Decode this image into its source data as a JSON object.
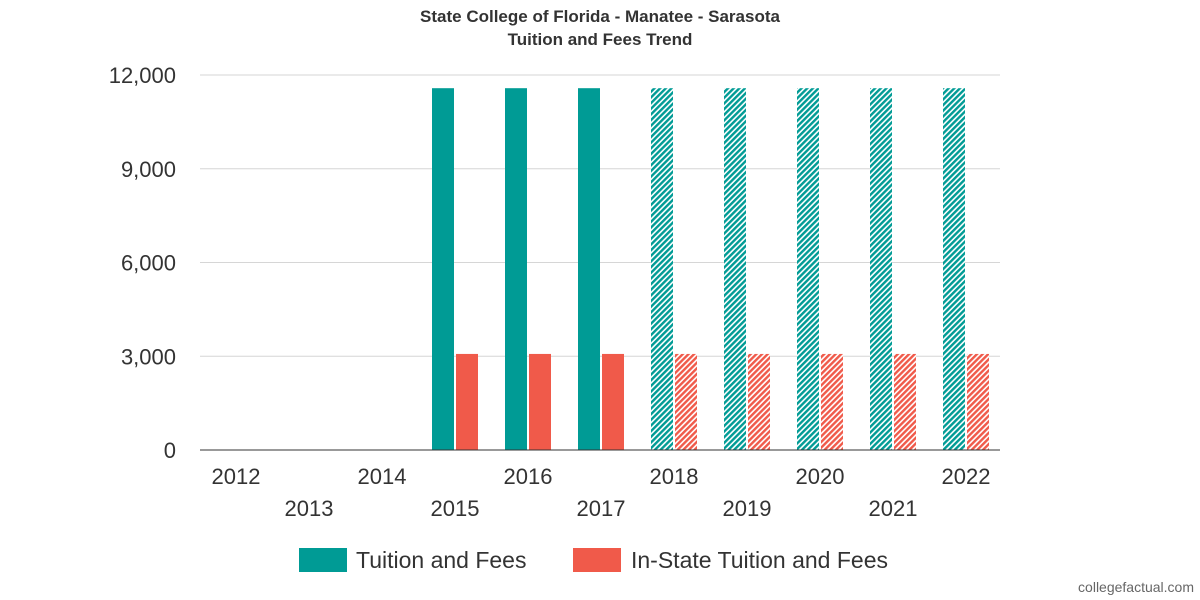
{
  "chart_data": {
    "type": "bar",
    "title": "State College of Florida - Manatee - Sarasota",
    "subtitle": "Tuition and Fees Trend",
    "categories": [
      "2012",
      "2013",
      "2014",
      "2015",
      "2016",
      "2017",
      "2018",
      "2019",
      "2020",
      "2021",
      "2022"
    ],
    "series": [
      {
        "name": "Tuition and Fees",
        "color": "#009b95",
        "values": [
          null,
          null,
          null,
          11578,
          11578,
          11578,
          11578,
          11578,
          11578,
          11578,
          11578
        ]
      },
      {
        "name": "In-State Tuition and Fees",
        "color": "#f05a4a",
        "values": [
          null,
          null,
          null,
          3074,
          3074,
          3074,
          3074,
          3074,
          3074,
          3074,
          3074
        ]
      }
    ],
    "estimated_from": "2018",
    "ylim": [
      0,
      12000
    ],
    "yticks": [
      0,
      3000,
      6000,
      9000,
      12000
    ],
    "ytick_labels": [
      "0",
      "3,000",
      "6,000",
      "9,000",
      "12,000"
    ],
    "xlabel": "",
    "ylabel": "",
    "grid": true,
    "legend_position": "bottom"
  },
  "credit": "collegefactual.com"
}
